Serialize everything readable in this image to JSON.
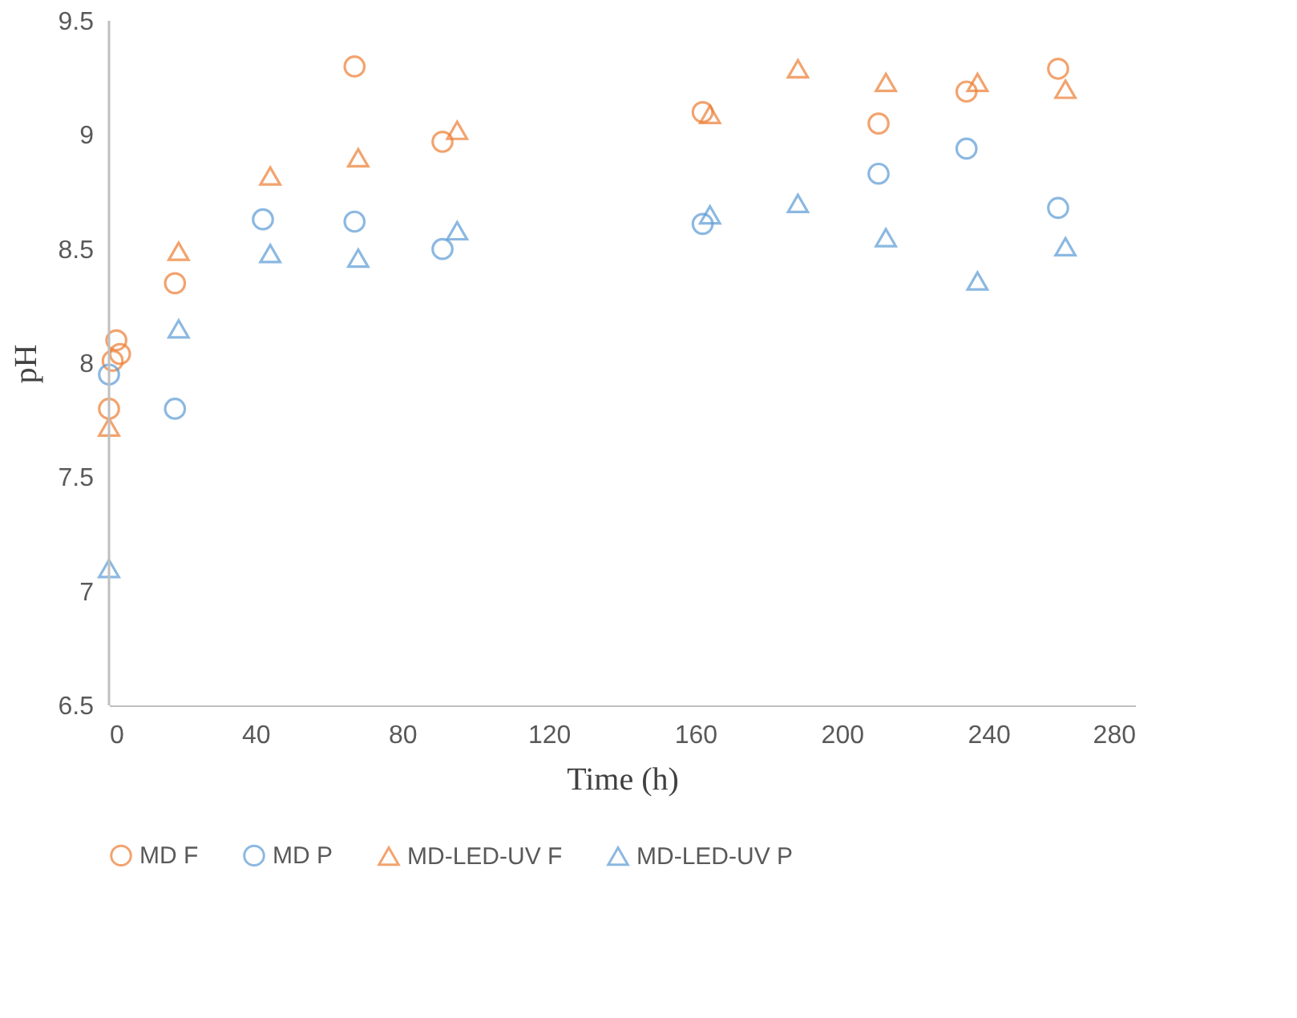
{
  "chart_data": {
    "type": "scatter",
    "xlabel": "Time (h)",
    "ylabel": "pH",
    "xlim": [
      0,
      280
    ],
    "xticks": [
      0,
      40,
      80,
      120,
      160,
      200,
      240,
      280
    ],
    "ylim": [
      6.5,
      9.5
    ],
    "yticks": [
      6.5,
      7,
      7.5,
      8,
      8.5,
      9,
      9.5
    ],
    "grid": false,
    "legend": "bottom",
    "series": [
      {
        "name": "MD F",
        "color": "#ed7d31",
        "marker": "circle",
        "x": [
          0,
          1,
          2,
          3,
          18,
          67,
          91,
          162,
          210,
          234,
          259
        ],
        "values": [
          7.8,
          8.01,
          8.1,
          8.04,
          8.35,
          9.3,
          8.97,
          9.1,
          9.05,
          9.19,
          9.29
        ]
      },
      {
        "name": "MD P",
        "color": "#5b9bd5",
        "marker": "circle",
        "x": [
          0,
          18,
          42,
          67,
          91,
          162,
          210,
          234,
          259
        ],
        "values": [
          7.95,
          7.8,
          8.63,
          8.62,
          8.5,
          8.61,
          8.83,
          8.94,
          8.68
        ]
      },
      {
        "name": "MD-LED-UV F",
        "color": "#ed7d31",
        "marker": "triangle",
        "x": [
          0,
          19,
          44,
          68,
          95,
          164,
          188,
          212,
          237,
          261
        ],
        "values": [
          7.72,
          8.49,
          8.82,
          8.9,
          9.02,
          9.09,
          9.29,
          9.23,
          9.23,
          9.2
        ]
      },
      {
        "name": "MD-LED-UV P",
        "color": "#5b9bd5",
        "marker": "triangle",
        "x": [
          0,
          19,
          44,
          68,
          95,
          164,
          188,
          212,
          237,
          261
        ],
        "values": [
          7.1,
          8.15,
          8.48,
          8.46,
          8.58,
          8.65,
          8.7,
          8.55,
          8.36,
          8.51
        ]
      }
    ]
  }
}
